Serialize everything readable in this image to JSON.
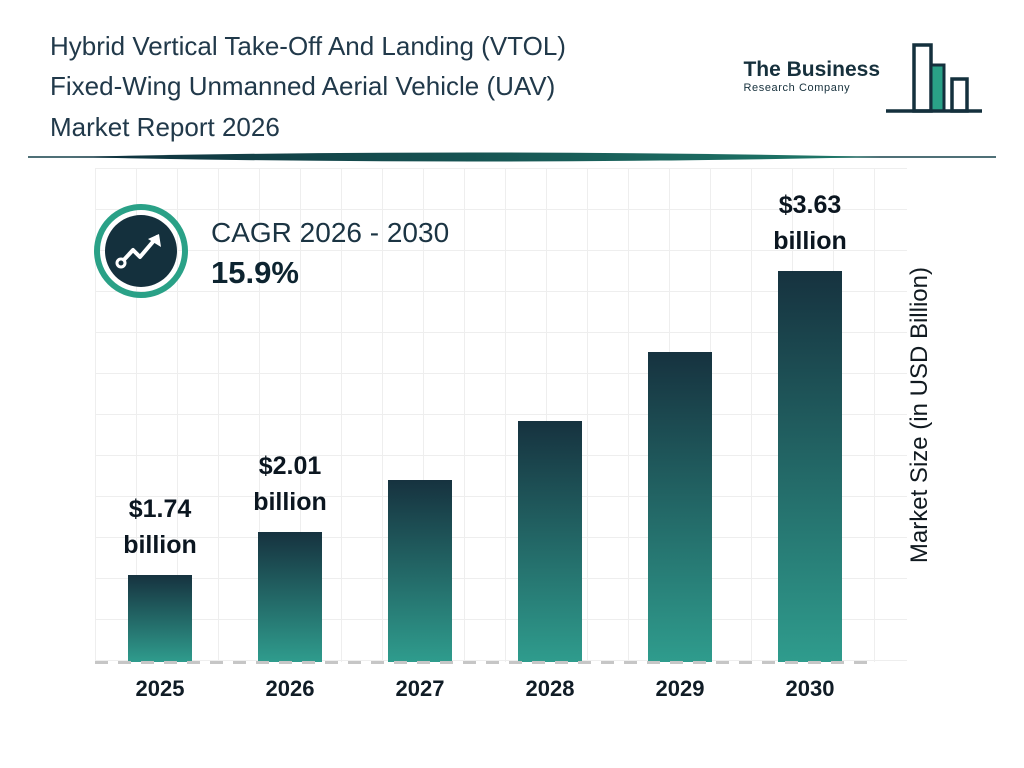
{
  "header": {
    "title_lines": [
      "Hybrid Vertical Take-Off And Landing (VTOL)",
      "Fixed-Wing Unmanned Aerial Vehicle (UAV)",
      "Market Report 2026"
    ],
    "logo": {
      "line1": "The Business",
      "line2": "Research Company"
    }
  },
  "cagr": {
    "label": "CAGR 2026 - 2030",
    "value": "15.9%"
  },
  "chart_data": {
    "type": "bar",
    "title": "Hybrid Vertical Take-Off And Landing (VTOL) Fixed-Wing Unmanned Aerial Vehicle (UAV) Market Report 2026",
    "categories": [
      "2025",
      "2026",
      "2027",
      "2028",
      "2029",
      "2030"
    ],
    "values": [
      1.74,
      2.01,
      2.33,
      2.7,
      3.13,
      3.63
    ],
    "labels": [
      {
        "line1": "$1.74",
        "line2": "billion"
      },
      {
        "line1": "$2.01",
        "line2": "billion"
      },
      null,
      null,
      null,
      {
        "line1": "$3.63",
        "line2": "billion"
      }
    ],
    "xlabel": "",
    "ylabel": "Market Size (in USD Billion)",
    "ylim": [
      1.2,
      3.75
    ],
    "grid": true,
    "legend": "none",
    "colors": {
      "bar_top": "#16323f",
      "bar_bottom": "#2f9c8d",
      "accent_teal": "#2aa187",
      "dark_navy": "#14303d"
    }
  }
}
